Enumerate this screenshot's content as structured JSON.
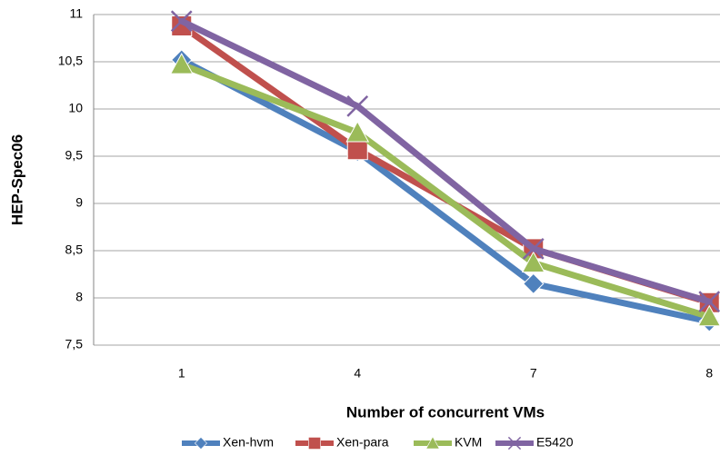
{
  "chart_data": {
    "type": "line",
    "x_label": "Number of concurrent VMs",
    "y_label": "HEP-Spec06",
    "categories": [
      "1",
      "4",
      "7",
      "8"
    ],
    "series": [
      {
        "name": "Xen-hvm",
        "color": "#4f81bd",
        "marker": "diamond",
        "values": [
          10.52,
          9.55,
          8.15,
          7.75
        ]
      },
      {
        "name": "Xen-para",
        "color": "#c0504d",
        "marker": "square",
        "values": [
          10.88,
          9.57,
          8.52,
          7.95
        ]
      },
      {
        "name": "KVM",
        "color": "#9bbb59",
        "marker": "triangle",
        "values": [
          10.47,
          9.75,
          8.37,
          7.8
        ]
      },
      {
        "name": "E5420",
        "color": "#8064a2",
        "marker": "x",
        "values": [
          10.93,
          10.03,
          8.52,
          7.96
        ]
      }
    ],
    "ylim": [
      7.5,
      11
    ],
    "yticks": [
      {
        "value": 7.5,
        "label": "7,5"
      },
      8,
      {
        "value": 8.5,
        "label": "8,5"
      },
      9,
      {
        "value": 9.5,
        "label": "9,5"
      },
      10,
      {
        "value": 10.5,
        "label": "10,5"
      },
      11
    ],
    "grid": true,
    "legend": "bottom"
  }
}
